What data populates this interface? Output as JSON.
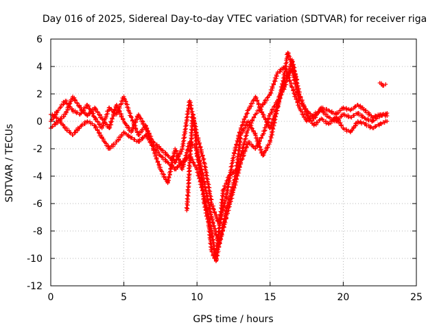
{
  "chart_data": {
    "type": "scatter",
    "title": "Day 016 of 2025, Sidereal Day-to-day VTEC variation (SDTVAR) for receiver riga",
    "xlabel": "GPS time / hours",
    "ylabel": "SDTVAR / TECUs",
    "xlim": [
      0,
      25
    ],
    "ylim": [
      -12,
      6
    ],
    "xticks": [
      0,
      5,
      10,
      15,
      20,
      25
    ],
    "yticks": [
      -12,
      -10,
      -8,
      -6,
      -4,
      -2,
      0,
      2,
      4,
      6
    ],
    "grid": true,
    "legend": "none",
    "marker": "+",
    "color": "#ff0000",
    "series": [
      {
        "name": "trace-a",
        "points": [
          [
            0.0,
            0.5
          ],
          [
            0.5,
            0.2
          ],
          [
            1.0,
            -0.5
          ],
          [
            1.5,
            -1.0
          ],
          [
            2.0,
            -0.4
          ],
          [
            2.5,
            0.0
          ],
          [
            3.0,
            -0.3
          ],
          [
            3.5,
            -1.2
          ],
          [
            4.0,
            -2.0
          ],
          [
            4.5,
            -1.5
          ],
          [
            5.0,
            -0.8
          ],
          [
            5.5,
            -1.2
          ],
          [
            6.0,
            -1.5
          ],
          [
            6.5,
            -1.0
          ],
          [
            7.0,
            -1.8
          ],
          [
            7.5,
            -2.5
          ],
          [
            8.0,
            -3.0
          ],
          [
            8.5,
            -3.5
          ],
          [
            9.0,
            -3.0
          ],
          [
            9.5,
            -2.5
          ],
          [
            10.0,
            -3.5
          ],
          [
            10.5,
            -5.5
          ],
          [
            11.0,
            -8.0
          ],
          [
            11.3,
            -10.2
          ],
          [
            11.6,
            -8.5
          ],
          [
            12.0,
            -6.5
          ],
          [
            12.5,
            -4.5
          ],
          [
            13.0,
            -2.5
          ],
          [
            13.5,
            -0.5
          ],
          [
            14.0,
            0.5
          ],
          [
            14.5,
            1.2
          ],
          [
            15.0,
            2.0
          ],
          [
            15.5,
            3.5
          ],
          [
            16.0,
            4.0
          ],
          [
            16.5,
            2.5
          ],
          [
            17.0,
            1.0
          ],
          [
            17.5,
            0.0
          ],
          [
            18.0,
            0.5
          ],
          [
            18.5,
            0.8
          ],
          [
            19.0,
            0.3
          ],
          [
            19.5,
            0.0
          ],
          [
            20.0,
            0.5
          ],
          [
            20.5,
            0.3
          ],
          [
            21.0,
            0.6
          ],
          [
            21.5,
            0.2
          ],
          [
            22.0,
            0.0
          ],
          [
            22.5,
            0.4
          ],
          [
            23.0,
            0.6
          ]
        ]
      },
      {
        "name": "trace-b",
        "points": [
          [
            0.0,
            0.0
          ],
          [
            0.5,
            0.8
          ],
          [
            1.0,
            1.5
          ],
          [
            1.5,
            0.8
          ],
          [
            2.0,
            0.5
          ],
          [
            2.5,
            1.2
          ],
          [
            3.0,
            0.3
          ],
          [
            3.5,
            -0.5
          ],
          [
            4.0,
            1.0
          ],
          [
            4.5,
            0.5
          ],
          [
            5.0,
            1.8
          ],
          [
            5.5,
            0.3
          ],
          [
            6.0,
            -1.0
          ],
          [
            6.5,
            -0.3
          ],
          [
            7.0,
            -2.0
          ],
          [
            7.5,
            -3.5
          ],
          [
            8.0,
            -4.5
          ],
          [
            8.5,
            -2.0
          ],
          [
            9.0,
            -3.5
          ],
          [
            9.5,
            -1.5
          ],
          [
            10.0,
            -2.0
          ],
          [
            10.5,
            -4.5
          ],
          [
            11.0,
            -7.0
          ],
          [
            11.5,
            -9.0
          ],
          [
            12.0,
            -7.0
          ],
          [
            12.5,
            -5.0
          ],
          [
            13.0,
            -3.0
          ],
          [
            13.5,
            -1.5
          ],
          [
            14.0,
            -2.0
          ],
          [
            14.5,
            -1.0
          ],
          [
            15.0,
            0.5
          ],
          [
            15.5,
            1.5
          ],
          [
            16.0,
            2.5
          ],
          [
            16.5,
            4.5
          ],
          [
            17.0,
            2.0
          ],
          [
            17.5,
            0.5
          ],
          [
            18.0,
            -0.3
          ],
          [
            18.5,
            0.2
          ],
          [
            19.0,
            -0.2
          ],
          [
            19.5,
            0.3
          ],
          [
            20.0,
            -0.5
          ],
          [
            20.5,
            -0.8
          ],
          [
            21.0,
            0.0
          ],
          [
            21.5,
            -0.2
          ],
          [
            22.0,
            -0.5
          ],
          [
            22.5,
            -0.2
          ],
          [
            23.0,
            0.0
          ]
        ]
      },
      {
        "name": "trace-c",
        "points": [
          [
            0.0,
            -0.5
          ],
          [
            0.5,
            0.0
          ],
          [
            1.0,
            0.5
          ],
          [
            1.5,
            1.8
          ],
          [
            2.0,
            1.0
          ],
          [
            2.5,
            0.4
          ],
          [
            3.0,
            1.0
          ],
          [
            3.5,
            0.2
          ],
          [
            4.0,
            -0.5
          ],
          [
            4.5,
            1.2
          ],
          [
            5.0,
            0.0
          ],
          [
            5.5,
            -0.8
          ],
          [
            6.0,
            0.5
          ],
          [
            6.5,
            -0.5
          ],
          [
            7.0,
            -1.5
          ],
          [
            7.5,
            -2.0
          ],
          [
            8.0,
            -2.5
          ],
          [
            8.5,
            -3.0
          ],
          [
            9.0,
            -2.0
          ],
          [
            9.5,
            1.5
          ],
          [
            10.0,
            -1.0
          ],
          [
            10.5,
            -3.0
          ],
          [
            11.0,
            -6.0
          ],
          [
            11.5,
            -7.5
          ],
          [
            12.0,
            -5.5
          ],
          [
            12.5,
            -2.5
          ],
          [
            13.0,
            -0.5
          ],
          [
            13.5,
            0.8
          ],
          [
            14.0,
            1.8
          ],
          [
            14.5,
            0.5
          ],
          [
            15.0,
            -0.5
          ],
          [
            15.5,
            1.0
          ],
          [
            16.0,
            3.0
          ],
          [
            16.5,
            3.8
          ],
          [
            17.0,
            1.5
          ],
          [
            17.5,
            0.8
          ],
          [
            18.0,
            0.2
          ],
          [
            18.5,
            1.0
          ],
          [
            19.0,
            0.8
          ],
          [
            19.5,
            0.5
          ],
          [
            20.0,
            1.0
          ],
          [
            20.5,
            0.8
          ],
          [
            21.0,
            1.2
          ],
          [
            21.5,
            0.8
          ],
          [
            22.0,
            0.3
          ],
          [
            22.5,
            0.5
          ],
          [
            23.0,
            0.4
          ]
        ]
      },
      {
        "name": "trace-d",
        "points": [
          [
            9.3,
            -6.5
          ],
          [
            9.4,
            -5.0
          ],
          [
            9.5,
            -3.0
          ],
          [
            9.6,
            -1.5
          ],
          [
            9.7,
            0.5
          ],
          [
            9.8,
            0.0
          ],
          [
            9.9,
            -1.0
          ],
          [
            10.0,
            -2.5
          ],
          [
            10.3,
            -4.0
          ],
          [
            10.5,
            -6.0
          ],
          [
            10.8,
            -7.5
          ],
          [
            11.0,
            -9.5
          ],
          [
            11.2,
            -10.0
          ],
          [
            11.4,
            -9.0
          ],
          [
            11.6,
            -7.0
          ],
          [
            11.8,
            -5.0
          ],
          [
            12.2,
            -4.0
          ],
          [
            12.7,
            -3.5
          ],
          [
            13.0,
            -1.0
          ],
          [
            13.5,
            0.0
          ],
          [
            14.0,
            -1.0
          ],
          [
            14.5,
            -2.5
          ],
          [
            15.0,
            -1.5
          ],
          [
            15.5,
            1.0
          ],
          [
            16.0,
            3.5
          ],
          [
            16.2,
            5.0
          ],
          [
            16.5,
            4.2
          ],
          [
            16.8,
            3.0
          ]
        ]
      },
      {
        "name": "trace-e",
        "points": [
          [
            22.5,
            2.8
          ],
          [
            22.7,
            2.6
          ],
          [
            22.9,
            2.7
          ]
        ]
      }
    ]
  }
}
